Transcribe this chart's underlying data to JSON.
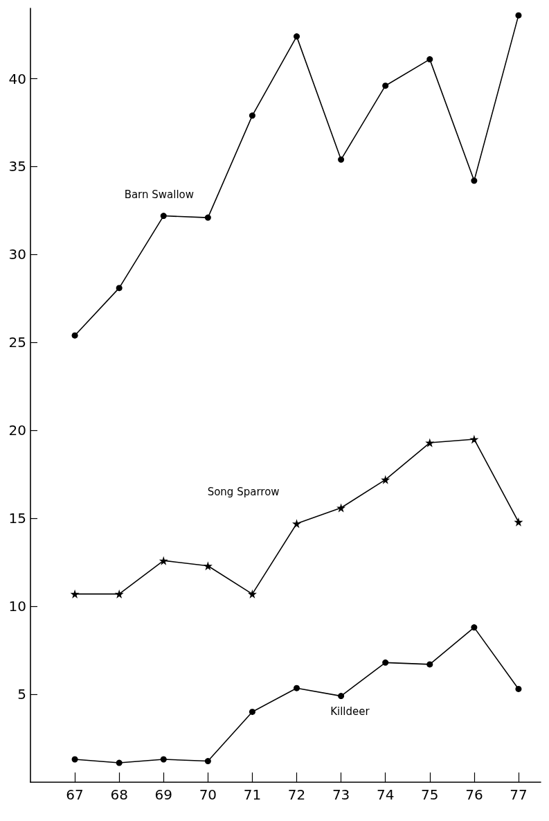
{
  "chart_data": {
    "type": "line",
    "x": [
      67,
      68,
      69,
      70,
      71,
      72,
      73,
      74,
      75,
      76,
      77
    ],
    "xlim": [
      66,
      77.5
    ],
    "xticks": [
      67,
      68,
      69,
      70,
      71,
      72,
      73,
      74,
      75,
      76,
      77
    ],
    "ylim": [
      0,
      44
    ],
    "yticks": [
      5,
      10,
      15,
      20,
      25,
      30,
      35,
      40
    ],
    "grid": false,
    "legend": false,
    "series": [
      {
        "name": "Barn Swallow",
        "color": "#000000",
        "marker": "circle",
        "values": [
          25.4,
          28.1,
          32.2,
          32.1,
          37.9,
          42.4,
          35.4,
          39.6,
          41.1,
          34.2,
          43.6
        ]
      },
      {
        "name": "Song Sparrow",
        "color": "#000000",
        "marker": "star",
        "values": [
          10.7,
          10.7,
          12.6,
          12.3,
          10.7,
          14.7,
          15.6,
          17.2,
          19.3,
          19.5,
          14.8
        ]
      },
      {
        "name": "Killdeer",
        "color": "#000000",
        "marker": "circle",
        "values": [
          1.3,
          1.1,
          1.3,
          1.2,
          4.0,
          5.35,
          4.9,
          6.8,
          6.7,
          8.8,
          5.3
        ]
      }
    ]
  }
}
